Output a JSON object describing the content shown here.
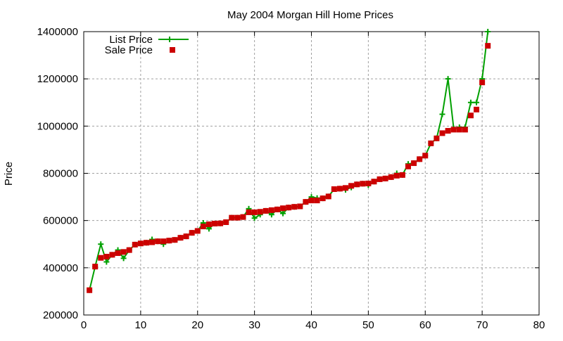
{
  "chart_data": {
    "type": "line",
    "title": "May 2004 Morgan Hill Home Prices",
    "xlabel": "",
    "ylabel": "Price",
    "xlim": [
      0,
      80
    ],
    "ylim": [
      200000,
      1400000
    ],
    "xticks": [
      0,
      10,
      20,
      30,
      40,
      50,
      60,
      70,
      80
    ],
    "yticks": [
      200000,
      400000,
      600000,
      800000,
      1000000,
      1200000,
      1400000
    ],
    "grid": true,
    "legend": "top-left",
    "colors": {
      "list": "#00a000",
      "sale": "#cc0000",
      "grid": "#a0a0a0"
    },
    "series": [
      {
        "name": "List Price",
        "style": "line-plus",
        "values": [
          305000,
          405000,
          500000,
          425000,
          455000,
          475000,
          440000,
          475000,
          498000,
          503000,
          506000,
          520000,
          512000,
          500000,
          515000,
          518000,
          527000,
          533000,
          548000,
          556000,
          590000,
          565000,
          587000,
          588000,
          593000,
          612000,
          612000,
          615000,
          650000,
          610000,
          625000,
          641000,
          625000,
          647000,
          630000,
          655000,
          658000,
          660000,
          679000,
          700000,
          695000,
          694000,
          702000,
          733000,
          735000,
          730000,
          740000,
          753000,
          756000,
          750000,
          765000,
          775000,
          778000,
          784000,
          800000,
          793000,
          840000,
          843000,
          860000,
          875000,
          927000,
          948000,
          1050000,
          1200000,
          990000,
          995000,
          995000,
          1100000,
          1100000,
          1200000,
          1400000
        ]
      },
      {
        "name": "Sale Price",
        "style": "square",
        "values": [
          305000,
          405000,
          442000,
          447000,
          455000,
          462000,
          467000,
          475000,
          498000,
          503000,
          506000,
          508000,
          512000,
          512000,
          515000,
          518000,
          527000,
          533000,
          548000,
          556000,
          575000,
          584000,
          587000,
          588000,
          593000,
          612000,
          612000,
          615000,
          635000,
          635000,
          637000,
          641000,
          644000,
          647000,
          652000,
          655000,
          658000,
          660000,
          679000,
          685000,
          685000,
          694000,
          702000,
          733000,
          735000,
          738000,
          747000,
          753000,
          756000,
          757000,
          765000,
          775000,
          778000,
          784000,
          790000,
          793000,
          829000,
          843000,
          860000,
          875000,
          927000,
          948000,
          970000,
          980000,
          985000,
          985000,
          985000,
          1045000,
          1070000,
          1185000,
          1340000
        ]
      }
    ]
  }
}
